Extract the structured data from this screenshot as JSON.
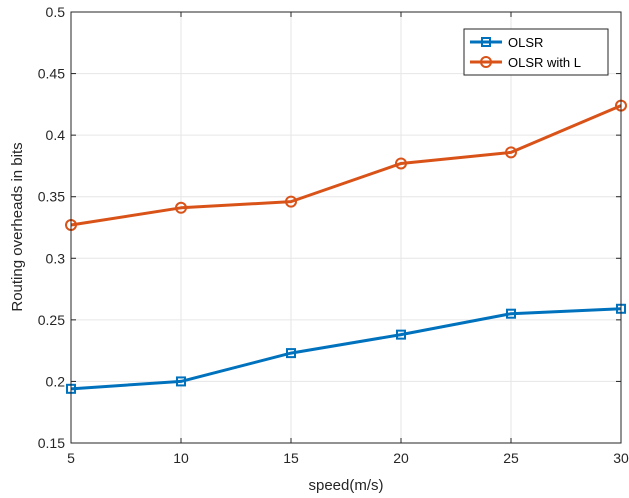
{
  "chart_data": {
    "type": "line",
    "title": "",
    "xlabel": "speed(m/s)",
    "ylabel": "Routing overheads in bits",
    "x": [
      5,
      10,
      15,
      20,
      25,
      30
    ],
    "xlim": [
      5,
      30
    ],
    "ylim": [
      0.15,
      0.5
    ],
    "xticks": [
      5,
      10,
      15,
      20,
      25,
      30
    ],
    "yticks": [
      0.15,
      0.2,
      0.25,
      0.3,
      0.35,
      0.4,
      0.45,
      0.5
    ],
    "xtick_labels": [
      "5",
      "10",
      "15",
      "20",
      "25",
      "30"
    ],
    "ytick_labels": [
      "0.15",
      "0.2",
      "0.25",
      "0.3",
      "0.35",
      "0.4",
      "0.45",
      "0.5"
    ],
    "grid": true,
    "legend_position": "top-right",
    "series": [
      {
        "name": "OLSR",
        "values": [
          0.194,
          0.2,
          0.223,
          0.238,
          0.255,
          0.259
        ],
        "color": "#0072BD",
        "marker": "square"
      },
      {
        "name": "OLSR with L",
        "values": [
          0.327,
          0.341,
          0.346,
          0.377,
          0.386,
          0.424
        ],
        "color": "#D95319",
        "marker": "circle"
      }
    ]
  }
}
